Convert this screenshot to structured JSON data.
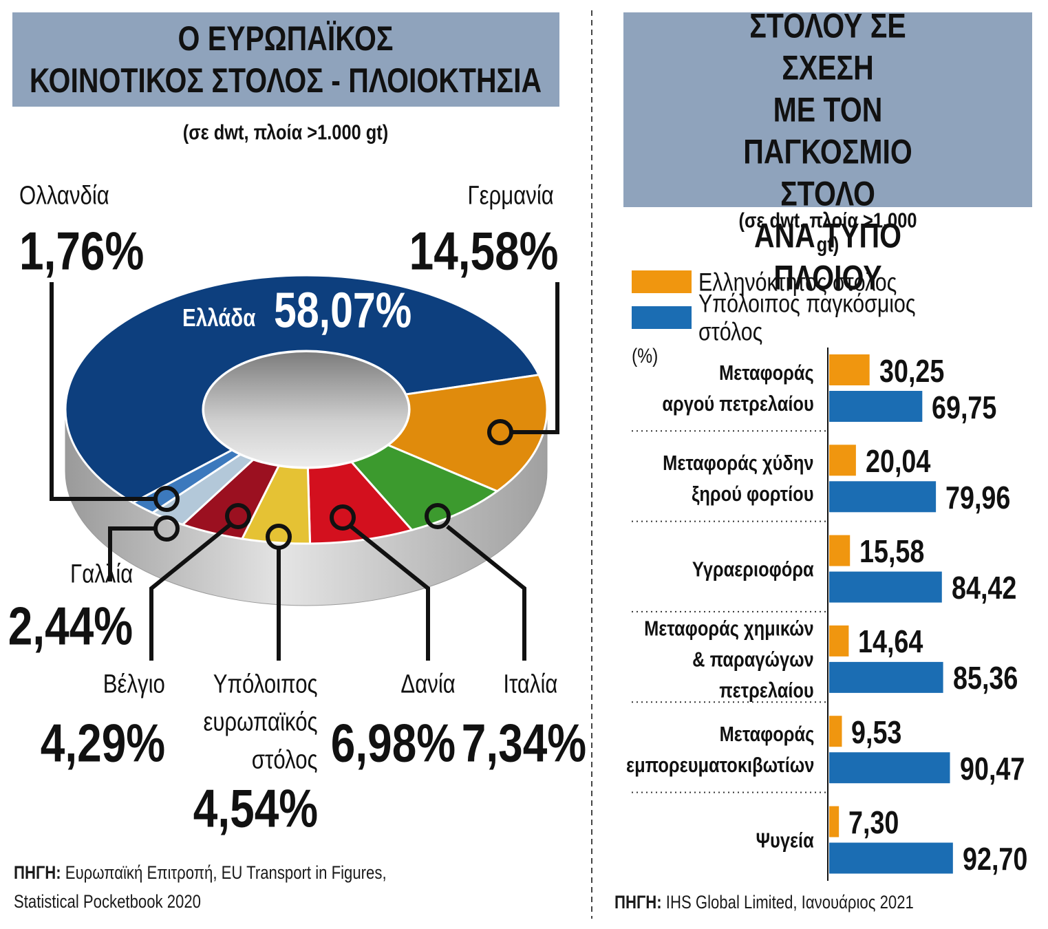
{
  "chart_data": [
    {
      "type": "pie",
      "donut": true,
      "title": "Ο ΕΥΡΩΠΑΪΚΟΣ\nΚΟΙΝΟΤΙΚΟΣ ΣΤΟΛΟΣ - ΠΛΟΙΟΚΤΗΣΙΑ",
      "subtitle": "(σε dwt, πλοία >1.000 gt)",
      "categories": [
        "Ελλάδα",
        "Γερμανία",
        "Ιταλία",
        "Δανία",
        "Υπόλοιπος\nευρωπαϊκός\nστόλος",
        "Βέλγιο",
        "Γαλλία",
        "Ολλανδία"
      ],
      "values": [
        58.07,
        14.58,
        7.34,
        6.98,
        4.54,
        4.29,
        2.44,
        1.76
      ],
      "value_labels": [
        "58,07%",
        "14,58%",
        "7,34%",
        "6,98%",
        "4,54%",
        "4,29%",
        "2,44%",
        "1,76%"
      ],
      "colors": [
        "#0d3f7e",
        "#e08b0c",
        "#3c9a2e",
        "#d3101e",
        "#e5c234",
        "#9b1020",
        "#b3c8d9",
        "#3c79bd"
      ],
      "source_label": "ΠΗΓΗ:",
      "source": "Ευρωπαϊκή Επιτροπή, EU Transport in Figures, Statistical Pocketbook 2020"
    },
    {
      "type": "bar",
      "orientation": "horizontal",
      "title": "ΠΟΣΟΣΤΟ ΕΛΛΗΝΟΚΤΗΤΟΥ\nΣΤΟΛΟΥ ΣΕ ΣΧΕΣΗ\nΜΕ ΤΟΝ ΠΑΓΚΟΣΜΙΟ ΣΤΟΛΟ\nΑΝΑ ΤΥΠΟ ΠΛΟΙΟΥ",
      "subtitle": "(σε dwt, πλοία >1.000 gt)",
      "y_label": "(%)",
      "categories": [
        "Μεταφοράς\nαργού πετρελαίου",
        "Μεταφοράς χύδην\nξηρού φορτίου",
        "Υγραεριοφόρα",
        "Μεταφοράς χημικών\n& παραγώγων\nπετρελαίου",
        "Μεταφοράς\nεμπορευματοκιβωτίων",
        "Ψυγεία"
      ],
      "series": [
        {
          "name": "Ελληνόκτητος στόλος",
          "color": "#f0960f",
          "values": [
            30.25,
            20.04,
            15.58,
            14.64,
            9.53,
            7.3
          ],
          "value_labels": [
            "30,25",
            "20,04",
            "15,58",
            "14,64",
            "9,53",
            "7,30"
          ]
        },
        {
          "name": "Υπόλοιπος παγκόσμιος στόλος",
          "color": "#1b6db3",
          "values": [
            69.75,
            79.96,
            84.42,
            85.36,
            90.47,
            92.7
          ],
          "value_labels": [
            "69,75",
            "79,96",
            "84,42",
            "85,36",
            "90,47",
            "92,70"
          ]
        }
      ],
      "source_label": "ΠΗΓΗ:",
      "source": "IHS Global Limited, Ιανουάριος 2021"
    }
  ]
}
